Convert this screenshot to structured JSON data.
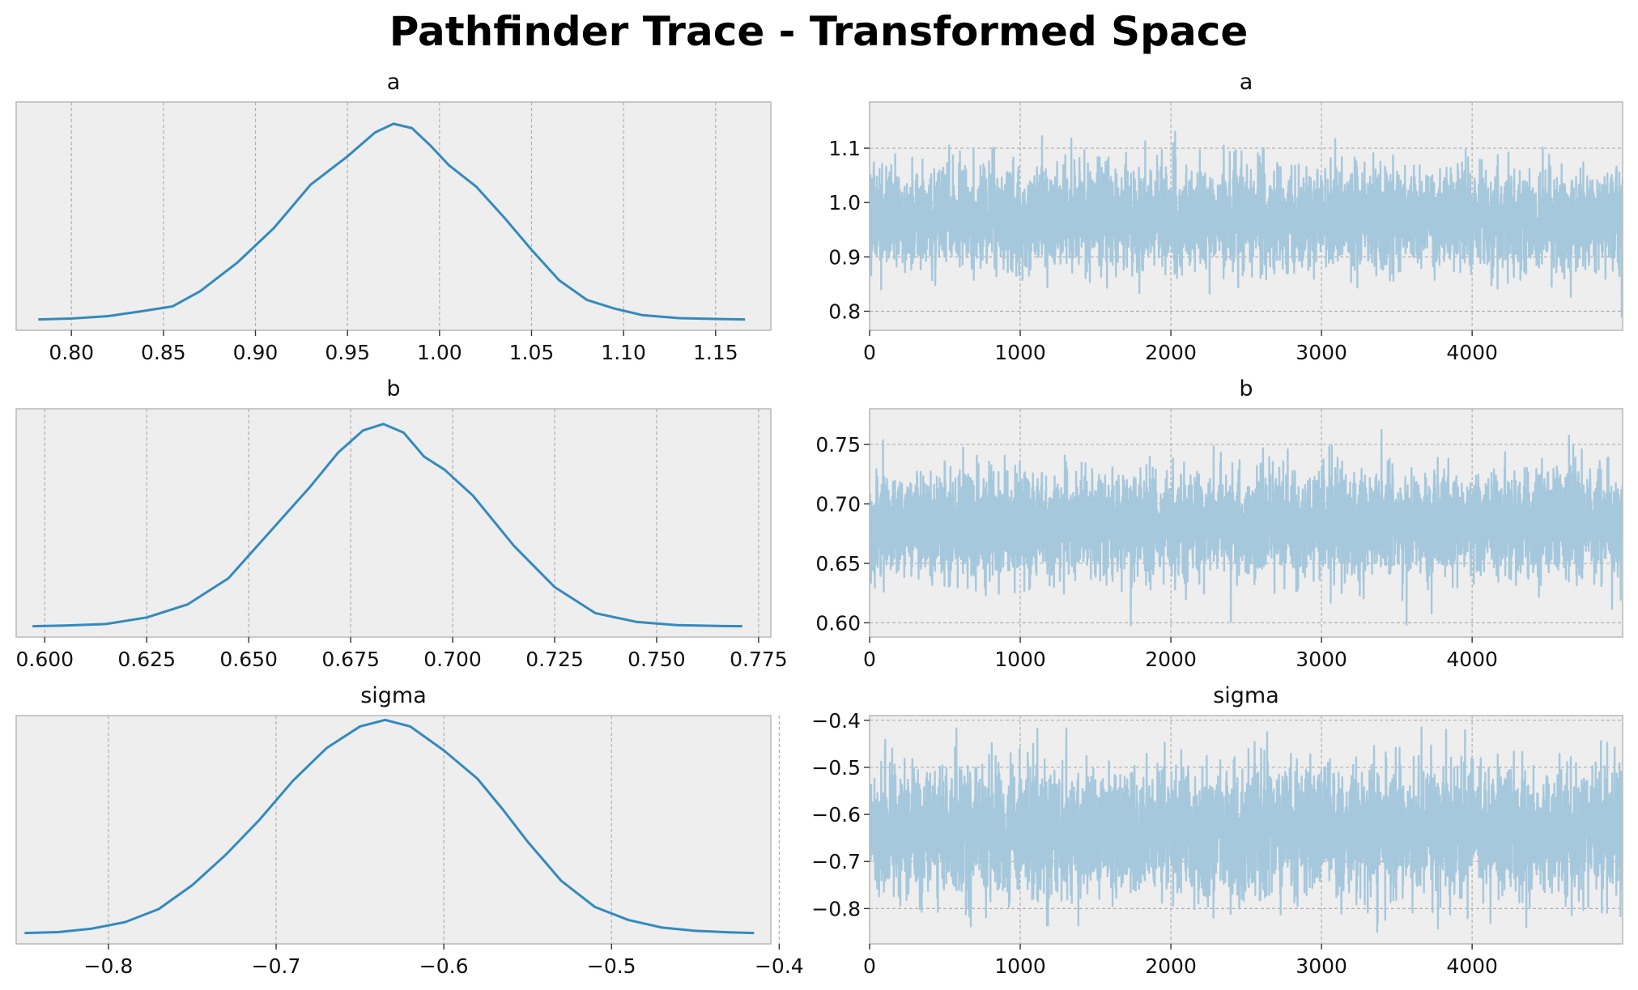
{
  "figure": {
    "title": "Pathfinder Trace - Transformed Space"
  },
  "colors": {
    "background": "#ffffff",
    "axes_face": "#eeeeee",
    "grid": "#b0b0b0",
    "spine": "#bcbcbc",
    "kde_line": "#348abd",
    "trace_line": "#a6c8dc"
  },
  "chart_data": [
    {
      "type": "line",
      "title": "a",
      "kind": "kde",
      "x_ticks": [
        0.8,
        0.85,
        0.9,
        0.95,
        1.0,
        1.05,
        1.1,
        1.15
      ],
      "x_tick_labels": [
        "0.80",
        "0.85",
        "0.90",
        "0.95",
        "1.00",
        "1.05",
        "1.10",
        "1.15"
      ],
      "xlim": [
        0.77,
        1.18
      ],
      "ylim": [
        -0.05,
        1.0
      ],
      "grid": "x",
      "x": [
        0.782,
        0.8,
        0.82,
        0.84,
        0.855,
        0.87,
        0.89,
        0.91,
        0.93,
        0.95,
        0.965,
        0.975,
        0.985,
        0.995,
        1.005,
        1.02,
        1.035,
        1.05,
        1.065,
        1.08,
        1.095,
        1.11,
        1.13,
        1.15,
        1.166
      ],
      "y": [
        0.0,
        0.004,
        0.015,
        0.04,
        0.06,
        0.13,
        0.26,
        0.42,
        0.62,
        0.75,
        0.86,
        0.9,
        0.88,
        0.8,
        0.71,
        0.61,
        0.47,
        0.32,
        0.18,
        0.09,
        0.05,
        0.02,
        0.006,
        0.002,
        0.0
      ]
    },
    {
      "type": "line",
      "title": "a",
      "kind": "trace",
      "draws": 5000,
      "center": 0.97,
      "spread": 0.045,
      "observed_range": [
        0.78,
        1.17
      ],
      "x_ticks": [
        0,
        1000,
        2000,
        3000,
        4000
      ],
      "x_tick_labels": [
        "0",
        "1000",
        "2000",
        "3000",
        "4000"
      ],
      "y_ticks": [
        0.8,
        0.9,
        1.0,
        1.1
      ],
      "y_tick_labels": [
        "0.8",
        "0.9",
        "1.0",
        "1.1"
      ],
      "xlim": [
        0,
        4999
      ],
      "ylim": [
        0.765,
        1.185
      ],
      "grid": "both"
    },
    {
      "type": "line",
      "title": "b",
      "kind": "kde",
      "x_ticks": [
        0.6,
        0.625,
        0.65,
        0.675,
        0.7,
        0.725,
        0.75,
        0.775
      ],
      "x_tick_labels": [
        "0.600",
        "0.625",
        "0.650",
        "0.675",
        "0.700",
        "0.725",
        "0.750",
        "0.775"
      ],
      "xlim": [
        0.593,
        0.778
      ],
      "ylim": [
        -0.05,
        1.0
      ],
      "grid": "x",
      "x": [
        0.597,
        0.605,
        0.615,
        0.625,
        0.635,
        0.645,
        0.655,
        0.665,
        0.672,
        0.678,
        0.683,
        0.688,
        0.693,
        0.698,
        0.705,
        0.715,
        0.725,
        0.735,
        0.745,
        0.755,
        0.765,
        0.771
      ],
      "y": [
        0.0,
        0.003,
        0.01,
        0.04,
        0.1,
        0.22,
        0.43,
        0.64,
        0.8,
        0.9,
        0.93,
        0.89,
        0.78,
        0.72,
        0.6,
        0.37,
        0.18,
        0.06,
        0.02,
        0.005,
        0.001,
        0.0
      ]
    },
    {
      "type": "line",
      "title": "b",
      "kind": "trace",
      "draws": 5000,
      "center": 0.683,
      "spread": 0.022,
      "observed_range": [
        0.597,
        0.771
      ],
      "x_ticks": [
        0,
        1000,
        2000,
        3000,
        4000
      ],
      "x_tick_labels": [
        "0",
        "1000",
        "2000",
        "3000",
        "4000"
      ],
      "y_ticks": [
        0.6,
        0.65,
        0.7,
        0.75
      ],
      "y_tick_labels": [
        "0.60",
        "0.65",
        "0.70",
        "0.75"
      ],
      "xlim": [
        0,
        4999
      ],
      "ylim": [
        0.588,
        0.78
      ],
      "grid": "both"
    },
    {
      "type": "line",
      "title": "sigma",
      "kind": "kde",
      "x_ticks": [
        -0.8,
        -0.7,
        -0.6,
        -0.5,
        -0.4
      ],
      "x_tick_labels": [
        "−0.8",
        "−0.7",
        "−0.6",
        "−0.5",
        "−0.4"
      ],
      "xlim": [
        -0.855,
        -0.405
      ],
      "ylim": [
        -0.05,
        1.0
      ],
      "grid": "x",
      "x": [
        -0.85,
        -0.83,
        -0.81,
        -0.79,
        -0.77,
        -0.75,
        -0.73,
        -0.71,
        -0.69,
        -0.67,
        -0.65,
        -0.635,
        -0.62,
        -0.6,
        -0.58,
        -0.565,
        -0.55,
        -0.53,
        -0.51,
        -0.49,
        -0.47,
        -0.45,
        -0.43,
        -0.415
      ],
      "y": [
        0.0,
        0.004,
        0.02,
        0.05,
        0.11,
        0.22,
        0.36,
        0.52,
        0.7,
        0.85,
        0.95,
        0.98,
        0.95,
        0.84,
        0.71,
        0.57,
        0.42,
        0.24,
        0.12,
        0.06,
        0.025,
        0.01,
        0.003,
        0.0
      ]
    },
    {
      "type": "line",
      "title": "sigma",
      "kind": "trace",
      "draws": 5000,
      "center": -0.635,
      "spread": 0.065,
      "observed_range": [
        -0.85,
        -0.415
      ],
      "x_ticks": [
        0,
        1000,
        2000,
        3000,
        4000
      ],
      "x_tick_labels": [
        "0",
        "1000",
        "2000",
        "3000",
        "4000"
      ],
      "y_ticks": [
        -0.8,
        -0.7,
        -0.6,
        -0.5,
        -0.4
      ],
      "y_tick_labels": [
        "−0.8",
        "−0.7",
        "−0.6",
        "−0.5",
        "−0.4"
      ],
      "xlim": [
        0,
        4999
      ],
      "ylim": [
        -0.875,
        -0.39
      ],
      "grid": "both"
    }
  ]
}
